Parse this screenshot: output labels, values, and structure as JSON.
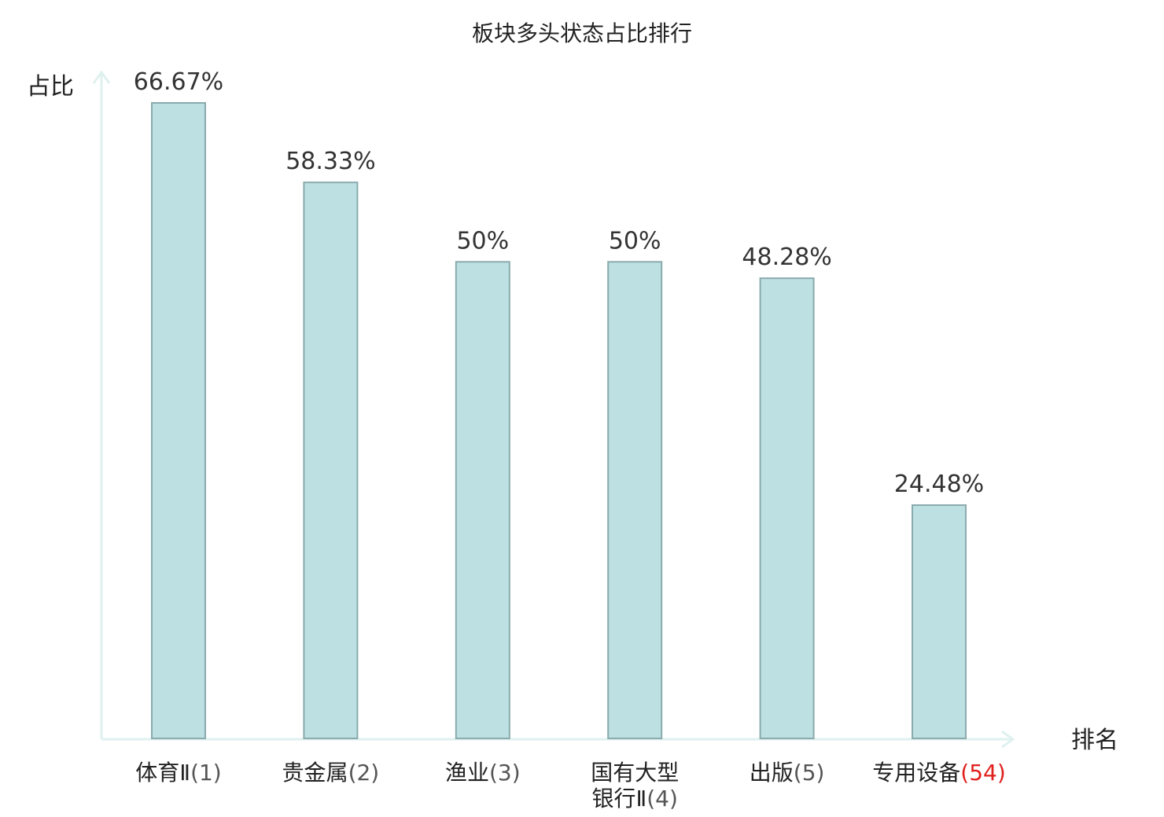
{
  "chart_data": {
    "type": "bar",
    "title": "板块多头状态占比排行",
    "ylabel": "占比",
    "xlabel": "排名",
    "ylim": [
      0,
      70
    ],
    "grid": false,
    "categories": [
      {
        "name": "体育Ⅱ",
        "rank": "(1)",
        "lines": [
          "体育Ⅱ"
        ],
        "highlight": false
      },
      {
        "name": "贵金属",
        "rank": "(2)",
        "lines": [
          "贵金属"
        ],
        "highlight": false
      },
      {
        "name": "渔业",
        "rank": "(3)",
        "lines": [
          "渔业"
        ],
        "highlight": false
      },
      {
        "name": "国有大型银行Ⅱ",
        "rank": "(4)",
        "lines": [
          "国有大型",
          "银行Ⅱ"
        ],
        "highlight": false
      },
      {
        "name": "出版",
        "rank": "(5)",
        "lines": [
          "出版"
        ],
        "highlight": false
      },
      {
        "name": "专用设备",
        "rank": "(54)",
        "lines": [
          "专用设备"
        ],
        "highlight": true
      }
    ],
    "values": [
      66.67,
      58.33,
      50,
      50,
      48.28,
      24.48
    ],
    "value_labels": [
      "66.67%",
      "58.33%",
      "50%",
      "50%",
      "48.28%",
      "24.48%"
    ]
  },
  "colors": {
    "bar_fill": "#bde0e3",
    "bar_stroke": "#8aaaad",
    "axis": "#dff1ef",
    "highlight_text": "#e0201c",
    "text": "#222222"
  }
}
